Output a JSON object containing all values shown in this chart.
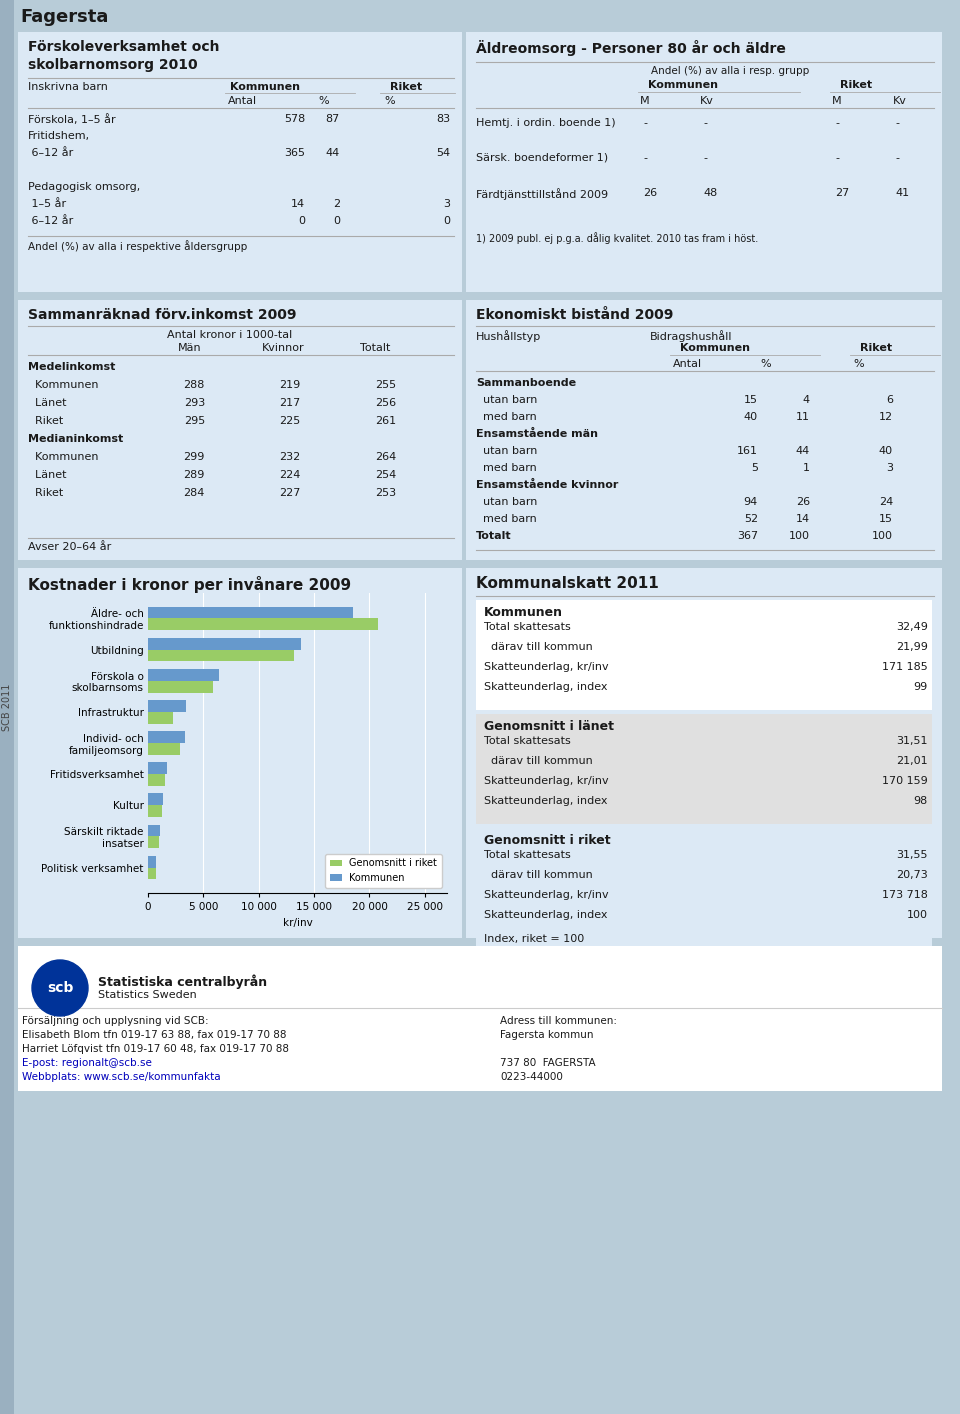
{
  "title": "Fagersta",
  "page_bg": "#b8ccd8",
  "panel_bg": "#dce9f5",
  "white_bg": "#ffffff",
  "gray_bg": "#e0e0e0",
  "s1_title_l1": "Förskoleverksamhet och",
  "s1_title_l2": "skolbarnomsorg 2010",
  "s1_inskrivna": "Inskrivna barn",
  "s1_kommunen": "Kommunen",
  "s1_riket": "Riket",
  "s1_antal": "Antal",
  "s1_pct1": "%",
  "s1_pct2": "%",
  "s1_rows": [
    [
      "Förskola, 1–5 år",
      "578",
      "87",
      "83"
    ],
    [
      "Fritidshem,",
      "",
      "",
      ""
    ],
    [
      " 6–12 år",
      "365",
      "44",
      "54"
    ],
    [
      "",
      "",
      "",
      ""
    ],
    [
      "Pedagogisk omsorg,",
      "",
      "",
      ""
    ],
    [
      " 1–5 år",
      "14",
      "2",
      "3"
    ],
    [
      " 6–12 år",
      "0",
      "0",
      "0"
    ]
  ],
  "s1_footer": "Andel (%) av alla i respektive åldersgrupp",
  "s2_title": "Äldreomsorg - Personer 80 år och äldre",
  "s2_subtitle": "Andel (%) av alla i resp. grupp",
  "s2_kommunen": "Kommunen",
  "s2_riket": "Riket",
  "s2_sub": [
    "M",
    "Kv",
    "M",
    "Kv"
  ],
  "s2_rows": [
    [
      "Hemtj. i ordin. boende 1)",
      "-",
      "-",
      "-",
      "-"
    ],
    [
      "Särsk. boendeformer 1)",
      "-",
      "-",
      "-",
      "-"
    ],
    [
      "Färdtjänsttillstånd 2009",
      "26",
      "48",
      "27",
      "41"
    ]
  ],
  "s2_footer": "1) 2009 publ. ej p.g.a. dålig kvalitet. 2010 tas fram i höst.",
  "s3_title": "Sammanräknad förv.inkomst 2009",
  "s3_subtitle": "Antal kronor i 1000-tal",
  "s3_sub": [
    "Män",
    "Kvinnor",
    "Totalt"
  ],
  "s3_rows": [
    [
      "bold",
      "Medelinkomst",
      "",
      "",
      ""
    ],
    [
      "normal",
      "  Kommunen",
      "288",
      "219",
      "255"
    ],
    [
      "normal",
      "  Länet",
      "293",
      "217",
      "256"
    ],
    [
      "normal",
      "  Riket",
      "295",
      "225",
      "261"
    ],
    [
      "bold",
      "Medianinkomst",
      "",
      "",
      ""
    ],
    [
      "normal",
      "  Kommunen",
      "299",
      "232",
      "264"
    ],
    [
      "normal",
      "  Länet",
      "289",
      "224",
      "254"
    ],
    [
      "normal",
      "  Riket",
      "284",
      "227",
      "253"
    ]
  ],
  "s3_footer": "Avser 20–64 år",
  "s4_title": "Ekonomiskt bistånd 2009",
  "s4_hushall": "Hushållstyp",
  "s4_bidrags": "Bidragshushåll",
  "s4_kommunen": "Kommunen",
  "s4_riket": "Riket",
  "s4_sub": [
    "Antal",
    "%",
    "%"
  ],
  "s4_rows": [
    [
      "bold",
      "Sammanboende",
      "",
      "",
      ""
    ],
    [
      "normal",
      "  utan barn",
      "15",
      "4",
      "6"
    ],
    [
      "normal",
      "  med barn",
      "40",
      "11",
      "12"
    ],
    [
      "bold",
      "Ensamstående män",
      "",
      "",
      ""
    ],
    [
      "normal",
      "  utan barn",
      "161",
      "44",
      "40"
    ],
    [
      "normal",
      "  med barn",
      "5",
      "1",
      "3"
    ],
    [
      "bold",
      "Ensamstående kvinnor",
      "",
      "",
      ""
    ],
    [
      "normal",
      "  utan barn",
      "94",
      "26",
      "24"
    ],
    [
      "normal",
      "  med barn",
      "52",
      "14",
      "15"
    ],
    [
      "bold",
      "Totalt",
      "367",
      "100",
      "100"
    ]
  ],
  "s5_title": "Kostnader i kronor per invånare 2009",
  "bar_cats": [
    "Äldre- och\nfunktionshindrade",
    "Utbildning",
    "Förskola o\nskolbarnsoms",
    "Infrastruktur",
    "Individ- och\nfamiljeomsorg",
    "Fritidsverksamhet",
    "Kultur",
    "Särskilt riktade\ninsatser",
    "Politisk verksamhet"
  ],
  "bar_kom": [
    18500,
    13800,
    6400,
    3400,
    3300,
    1700,
    1350,
    1100,
    750
  ],
  "bar_rik": [
    20800,
    13200,
    5900,
    2300,
    2900,
    1550,
    1300,
    1000,
    680
  ],
  "bar_color_kom": "#6699cc",
  "bar_color_rik": "#99cc66",
  "bar_legend_rik": "Genomsnitt i riket",
  "bar_legend_kom": "Kommunen",
  "bar_xticks": [
    0,
    5000,
    10000,
    15000,
    20000,
    25000
  ],
  "bar_xlabels": [
    "0",
    "5 000",
    "10 000",
    "15 000",
    "20 000",
    "25 000"
  ],
  "bar_xlabel": "kr/inv",
  "s6_title": "Kommunalskatt 2011",
  "tax_kom_label": "Kommunen",
  "tax_kom": [
    [
      "Total skattesats",
      "32,49"
    ],
    [
      "  därav till kommun",
      "21,99"
    ],
    [
      "Skatteunderlag, kr/inv",
      "171 185"
    ],
    [
      "Skatteunderlag, index",
      "99"
    ]
  ],
  "tax_lan_label": "Genomsnitt i länet",
  "tax_lan": [
    [
      "Total skattesats",
      "31,51"
    ],
    [
      "  därav till kommun",
      "21,01"
    ],
    [
      "Skatteunderlag, kr/inv",
      "170 159"
    ],
    [
      "Skatteunderlag, index",
      "98"
    ]
  ],
  "tax_rik_label": "Genomsnitt i riket",
  "tax_rik": [
    [
      "Total skattesats",
      "31,55"
    ],
    [
      "  därav till kommun",
      "20,73"
    ],
    [
      "Skatteunderlag, kr/inv",
      "173 718"
    ],
    [
      "Skatteunderlag, index",
      "100"
    ]
  ],
  "tax_footer": "Index, riket = 100",
  "footer_left": [
    "Försäljning och upplysning vid SCB:",
    "Elisabeth Blom tfn 019-17 63 88, fax 019-17 70 88",
    "Harriet Löfqvist tfn 019-17 60 48, fax 019-17 70 88",
    "E-post: regionalt@scb.se",
    "Webbplats: www.scb.se/kommunfakta"
  ],
  "footer_right": [
    "Adress till kommunen:",
    "Fagersta kommun",
    "",
    "737 80  FAGERSTA",
    "0223-44000"
  ],
  "scb_label": "SCB 2011",
  "scb_name": "Statistiska centralbyrån",
  "scb_eng": "Statistics Sweden"
}
